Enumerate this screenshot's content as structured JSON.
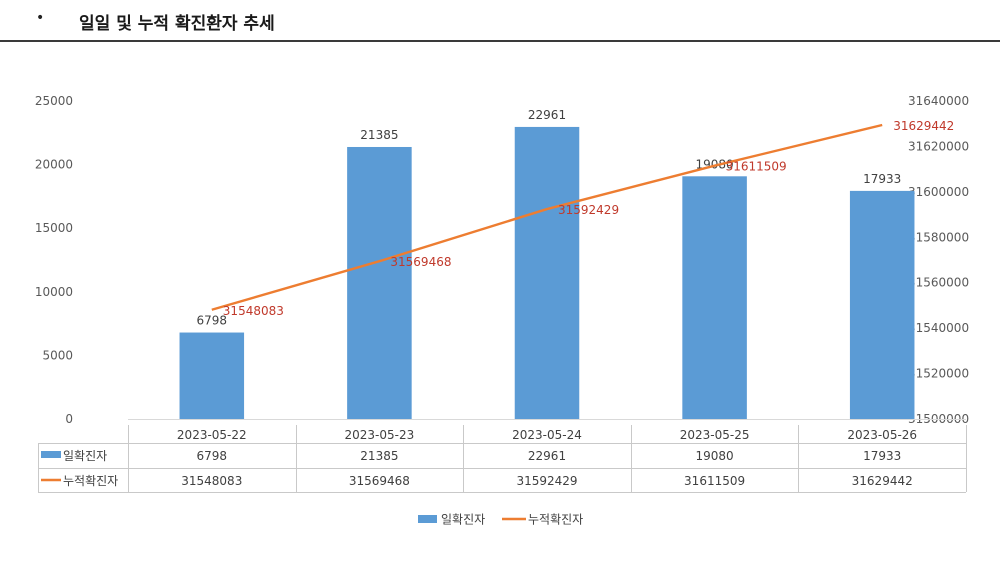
{
  "header": {
    "bullet": "•",
    "title": "일일 및 누적 확진환자 추세"
  },
  "chart_data": {
    "type": "bar",
    "categories": [
      "2023-05-22",
      "2023-05-23",
      "2023-05-24",
      "2023-05-25",
      "2023-05-26"
    ],
    "series": [
      {
        "name": "일확진자",
        "kind": "bar",
        "axis": "left",
        "color": "#5b9bd5",
        "label_color": "#404040",
        "values": [
          6798,
          21385,
          22961,
          19080,
          17933
        ]
      },
      {
        "name": "누적확진자",
        "kind": "line",
        "axis": "right",
        "color": "#ed7d31",
        "label_color": "#c0392b",
        "values": [
          31548083,
          31569468,
          31592429,
          31611509,
          31629442
        ]
      }
    ],
    "y_left": {
      "min": 0,
      "max": 25000,
      "step": 5000
    },
    "y_right": {
      "min": 31500000,
      "max": 31640000,
      "step": 20000
    },
    "data_table": true,
    "legend": "bottom-center",
    "grid": false
  }
}
